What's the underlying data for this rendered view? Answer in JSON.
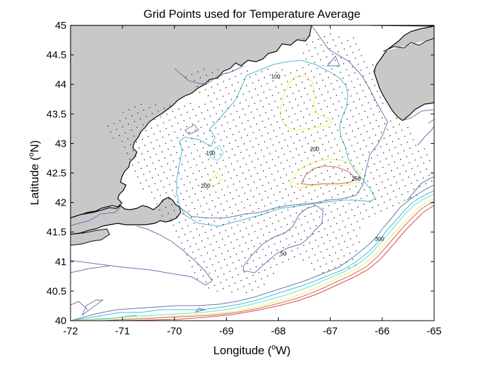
{
  "chart_data": {
    "type": "map",
    "title": "Grid Points used for Temperature Average",
    "xlabel_main": "Longitude (",
    "xlabel_sup": "o",
    "xlabel_end": "W)",
    "ylabel_main": "Latitude (",
    "ylabel_sup": "o",
    "ylabel_end": "N)",
    "xlim": [
      -72,
      -65
    ],
    "ylim": [
      40,
      45
    ],
    "xticks": [
      "-72",
      "-71",
      "-70",
      "-69",
      "-68",
      "-67",
      "-66",
      "-65"
    ],
    "yticks": [
      "40",
      "40.5",
      "41",
      "41.5",
      "42",
      "42.5",
      "43",
      "43.5",
      "44",
      "44.5",
      "45"
    ],
    "contour_labels": [
      {
        "text": "100",
        "lon": -68.05,
        "lat": 44.1
      },
      {
        "text": "150",
        "lon": -69.3,
        "lat": 42.8
      },
      {
        "text": "200",
        "lon": -69.4,
        "lat": 42.25
      },
      {
        "text": "200",
        "lon": -67.3,
        "lat": 42.87
      },
      {
        "text": "250",
        "lon": -66.5,
        "lat": 42.37
      },
      {
        "text": "50",
        "lon": -67.9,
        "lat": 41.1
      },
      {
        "text": "300",
        "lon": -66.05,
        "lat": 41.35
      }
    ],
    "land_color": "#c8c8c8",
    "contour_colors": {
      "50": "#6677aa",
      "100": "#44bbcc",
      "150": "#55dddd",
      "200": "#eeee66",
      "250": "#cc6666",
      "300": "#dd4444"
    }
  }
}
